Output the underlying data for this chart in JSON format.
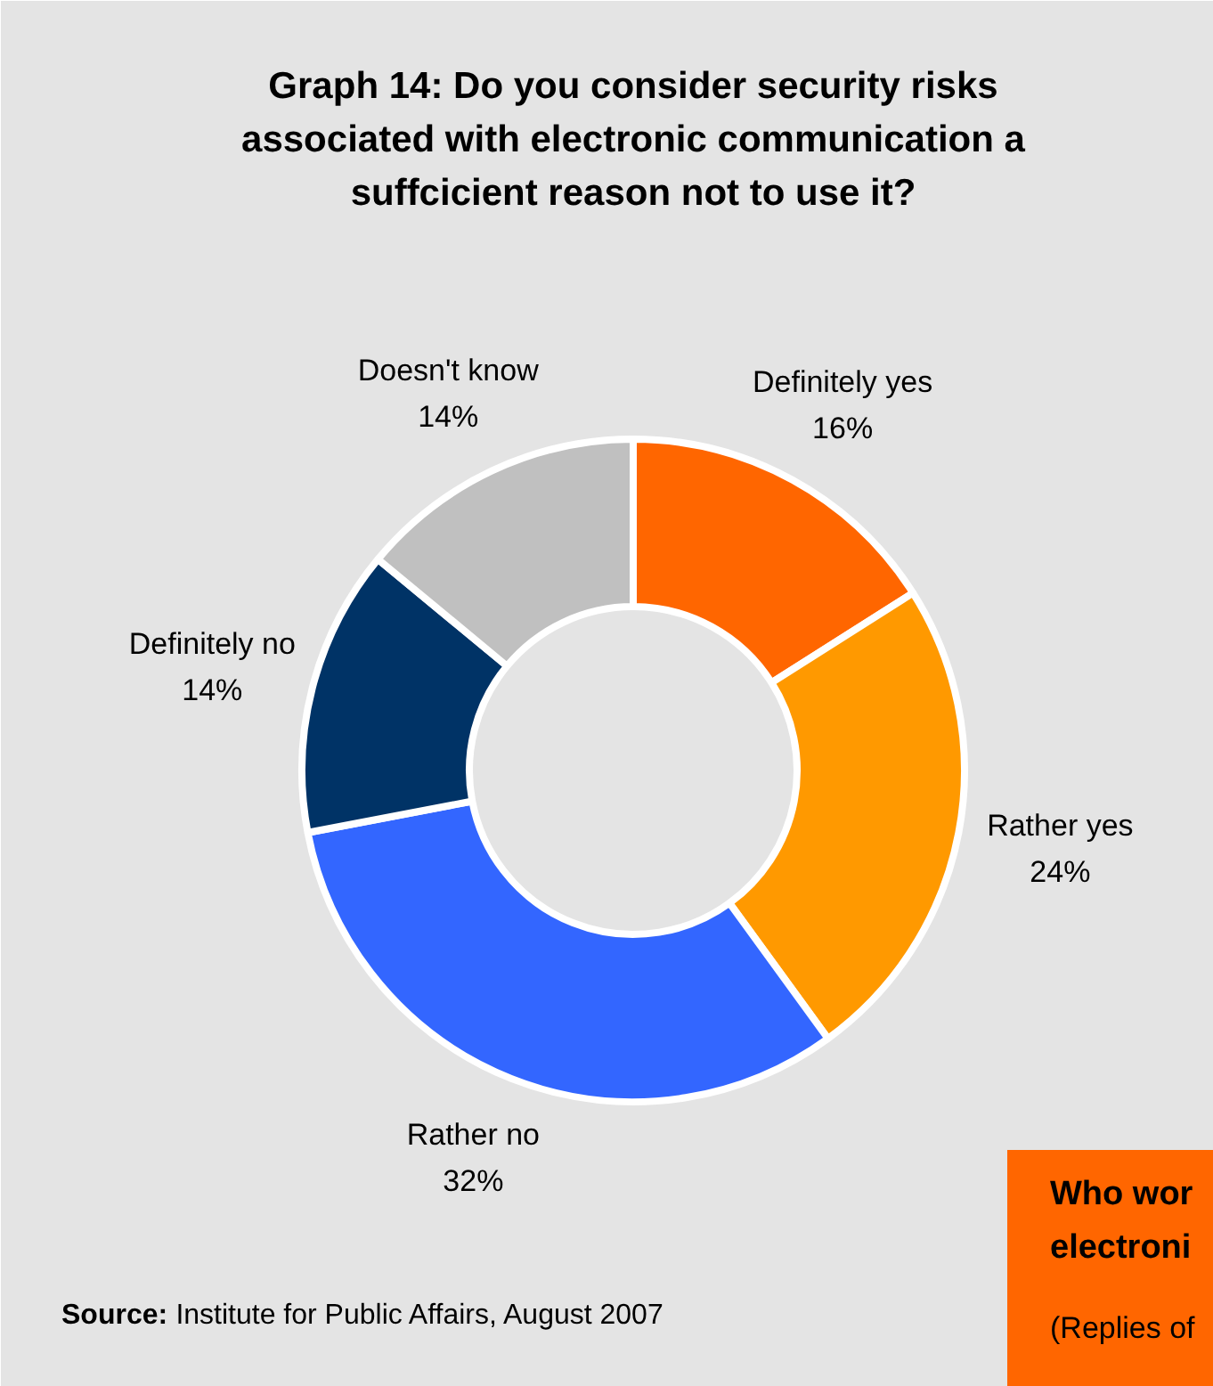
{
  "chart_data": {
    "type": "donut",
    "title": "Graph 14: Do you consider security risks\nassociated with electronic communication a\nsuffcicient reason not to use it?",
    "categories": [
      "Definitely yes",
      "Rather yes",
      "Rather no",
      "Definitely no",
      "Doesn't know"
    ],
    "values": [
      16,
      24,
      32,
      14,
      14
    ],
    "value_labels": [
      "16%",
      "24%",
      "32%",
      "14%",
      "14%"
    ],
    "colors": [
      "#ff6600",
      "#ff9900",
      "#3366ff",
      "#003366",
      "#c0c0c0"
    ],
    "annotations": [
      "Source: Institute for Public Affairs, August 2007",
      "Who wor\nelectroni",
      "(Replies of"
    ]
  }
}
